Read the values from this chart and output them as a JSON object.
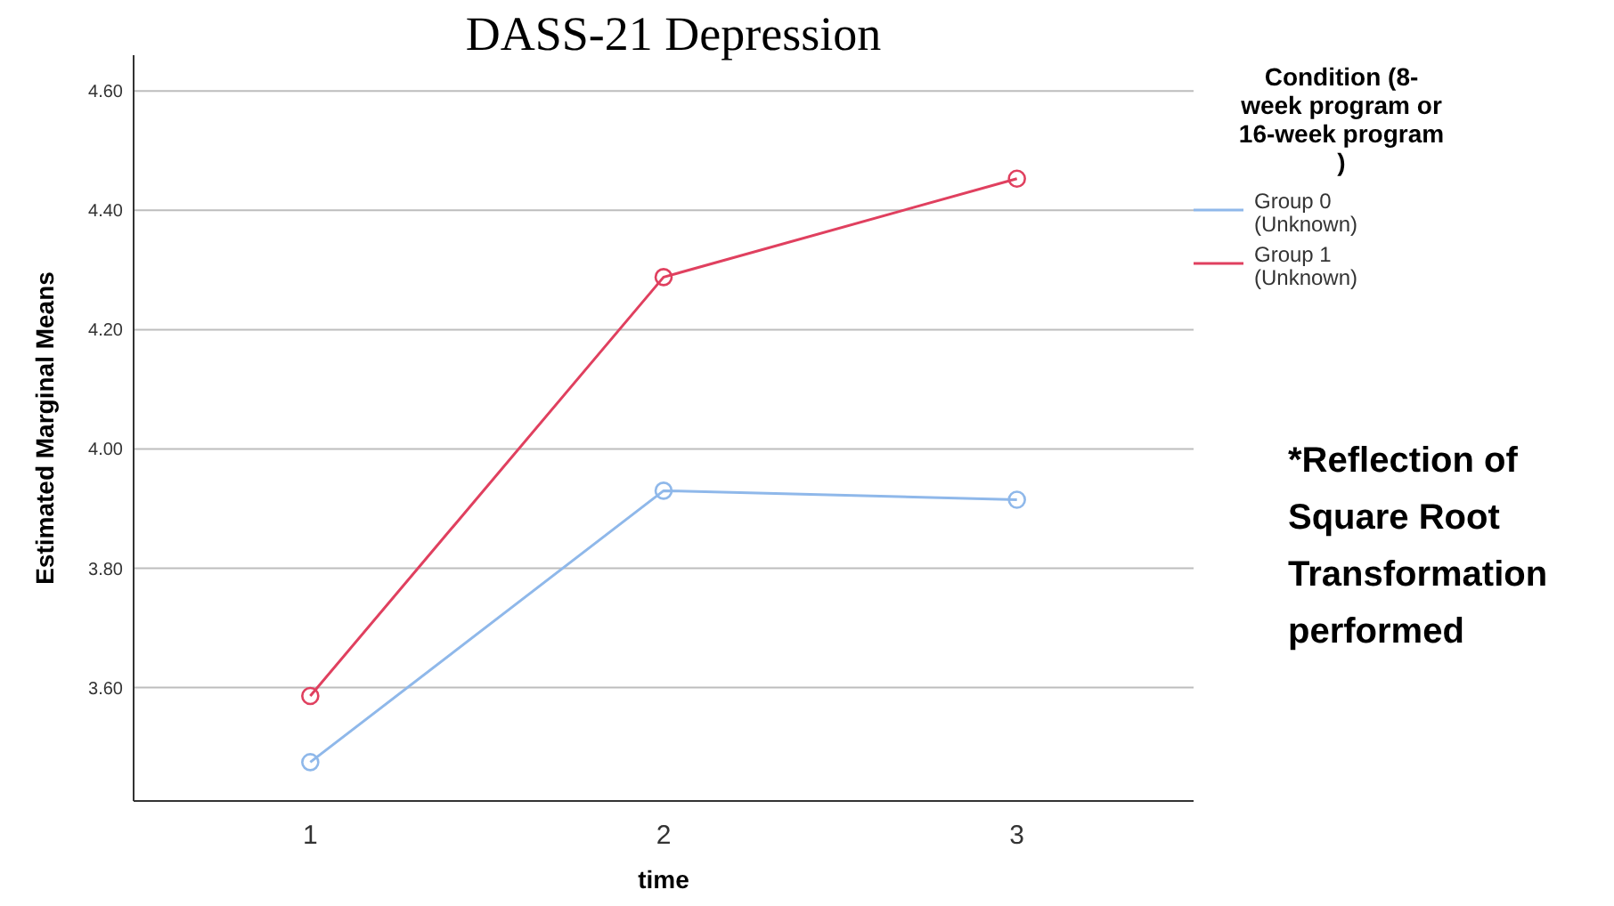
{
  "chart_data": {
    "type": "line",
    "title": "DASS-21 Depression",
    "xlabel": "time",
    "ylabel": "Estimated Marginal Means",
    "legend_title": "Condition (8-week program or 16-week program )",
    "categories": [
      "1",
      "2",
      "3"
    ],
    "series": [
      {
        "name": "Group 0 (Unknown)",
        "color": "#8fb8ea",
        "values": [
          3.475,
          3.93,
          3.915
        ]
      },
      {
        "name": "Group 1 (Unknown)",
        "color": "#e0405f",
        "values": [
          3.586,
          4.288,
          4.453
        ]
      }
    ],
    "ylim": [
      3.41,
      4.66
    ],
    "yticks": [
      {
        "value": 3.6,
        "label": "3.60"
      },
      {
        "value": 3.8,
        "label": "3.80"
      },
      {
        "value": 4.0,
        "label": "4.00"
      },
      {
        "value": 4.2,
        "label": "4.20"
      },
      {
        "value": 4.4,
        "label": "4.40"
      },
      {
        "value": 4.6,
        "label": "4.60"
      }
    ],
    "grid": "y",
    "legend": "top right",
    "marker": "circle",
    "line_style": "solid",
    "annotations": [
      "*Reflection of Square Root Transformation performed"
    ]
  }
}
